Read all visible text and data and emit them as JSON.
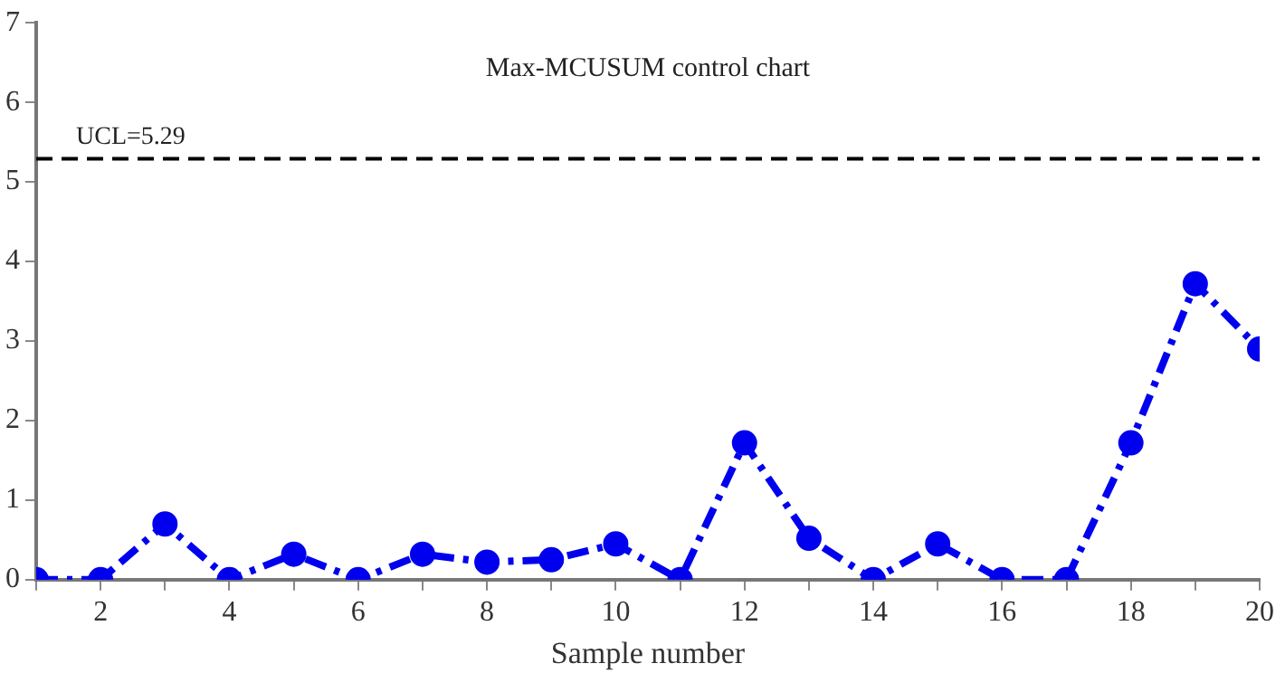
{
  "chart_data": {
    "type": "line",
    "title": "Max-MCUSUM control chart",
    "xlabel": "Sample number",
    "x": [
      1,
      2,
      3,
      4,
      5,
      6,
      7,
      8,
      9,
      10,
      11,
      12,
      13,
      14,
      15,
      16,
      17,
      18,
      19,
      20
    ],
    "series": [
      {
        "color": "#0000ee",
        "values": [
          0,
          0,
          0.7,
          0,
          0.32,
          0,
          0.32,
          0.22,
          0.25,
          0.45,
          0,
          1.72,
          0.52,
          0,
          0.45,
          0,
          0,
          1.72,
          3.72,
          2.9
        ]
      }
    ],
    "xlim": [
      1,
      20
    ],
    "xticks": [
      {
        "value": 1,
        "label": null
      },
      2,
      {
        "value": 3,
        "label": null
      },
      4,
      {
        "value": 5,
        "label": null
      },
      6,
      {
        "value": 7,
        "label": null
      },
      8,
      {
        "value": 9,
        "label": null
      },
      10,
      {
        "value": 11,
        "label": null
      },
      12,
      {
        "value": 13,
        "label": null
      },
      14,
      {
        "value": 15,
        "label": null
      },
      16,
      {
        "value": 17,
        "label": null
      },
      18,
      {
        "value": 19,
        "label": null
      },
      20
    ],
    "ylim": [
      0,
      7
    ],
    "yticks": [
      0,
      1,
      2,
      3,
      4,
      5,
      6,
      7
    ],
    "ref_lines": [
      {
        "axis": "y",
        "value": 5.29,
        "label": "UCL=5.29",
        "color": "#000000",
        "line_style": "dashed"
      }
    ],
    "grid": false,
    "legend": false,
    "marker": "circle",
    "line_style": "dashed"
  }
}
